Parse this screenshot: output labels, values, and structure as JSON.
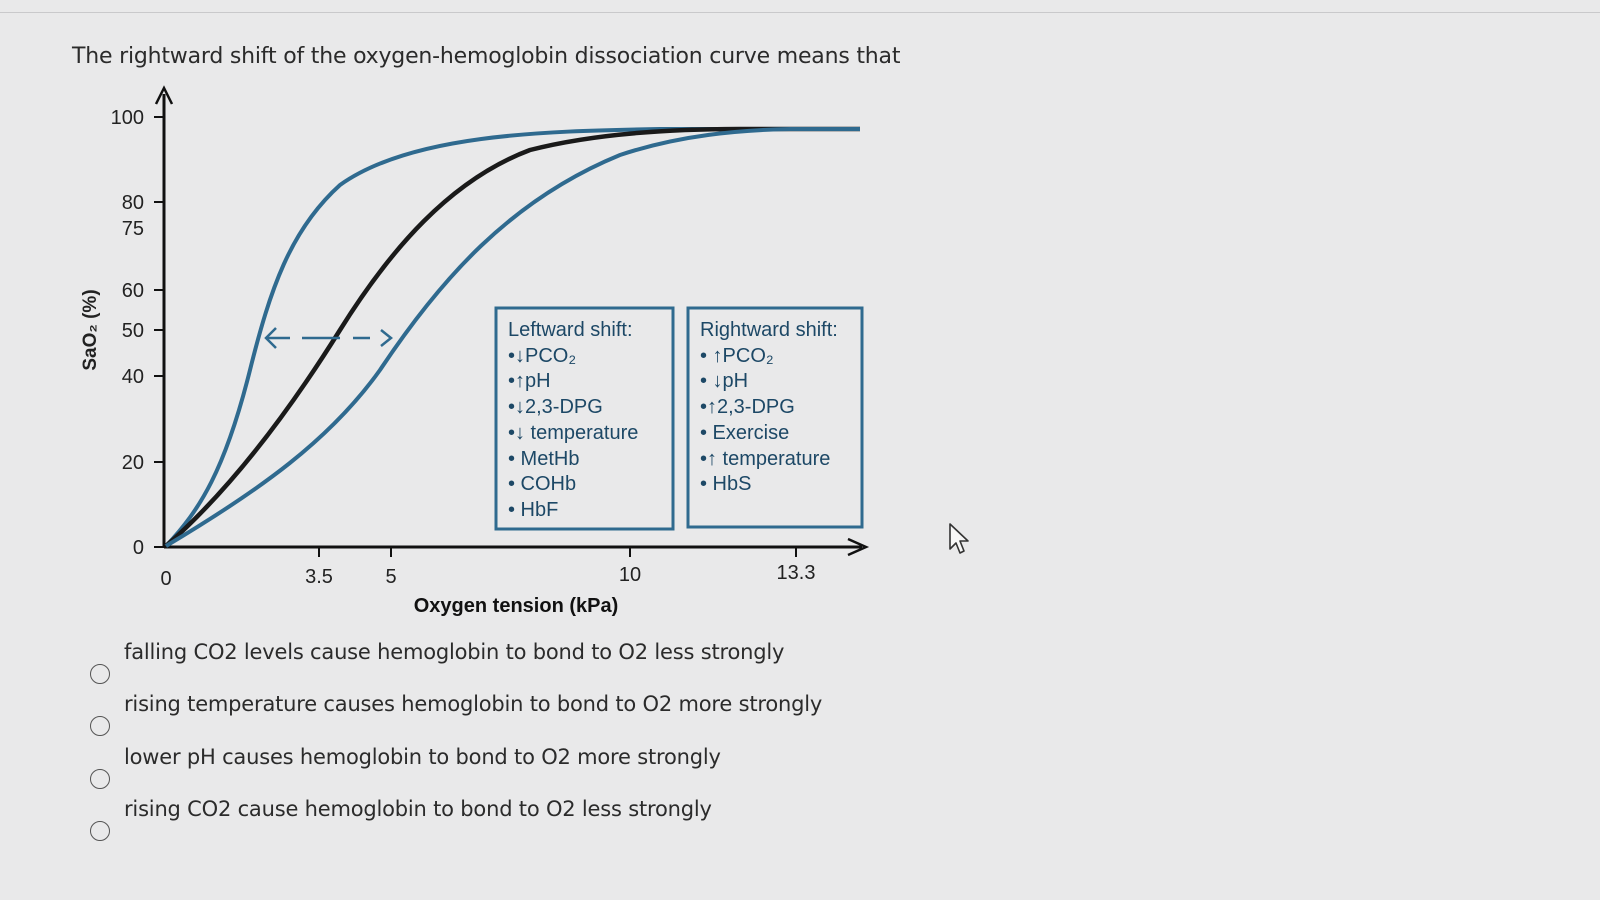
{
  "question": {
    "text": "The rightward shift of the oxygen-hemoglobin dissociation curve means that"
  },
  "figure": {
    "y_axis_label": "SaO₂ (%)",
    "x_axis_label": "Oxygen tension (kPa)",
    "y_ticks": [
      "100",
      "80",
      "75",
      "60",
      "50",
      "40",
      "20",
      "0"
    ],
    "x_ticks": [
      "0",
      "3.5",
      "5",
      "10",
      "13.3"
    ],
    "left_box": {
      "title": "Leftward shift:",
      "items": [
        "•↓PCO₂",
        "•↑pH",
        "•↓2,3-DPG",
        "•↓ temperature",
        "• MetHb",
        "• COHb",
        "• HbF"
      ]
    },
    "right_box": {
      "title": "Rightward shift:",
      "items": [
        "• ↑PCO₂",
        "• ↓pH",
        "•↑2,3-DPG",
        "•  Exercise",
        "•↑ temperature",
        "• HbS"
      ]
    },
    "colors": {
      "normal_curve": "#1a1a1a",
      "shifted_curves": "#2f6a8f",
      "box_border": "#2f6a8f"
    }
  },
  "options": [
    {
      "label": "falling CO2 levels cause hemoglobin to bond to O2 less strongly",
      "selected": false
    },
    {
      "label": "rising temperature causes hemoglobin to bond to O2 more strongly",
      "selected": false
    },
    {
      "label": "lower pH causes hemoglobin to bond to O2 more strongly",
      "selected": false
    },
    {
      "label": "rising CO2 cause hemoglobin to bond to O2 less strongly",
      "selected": false
    }
  ],
  "cursor": {
    "icon": "mouse-pointer-icon"
  }
}
